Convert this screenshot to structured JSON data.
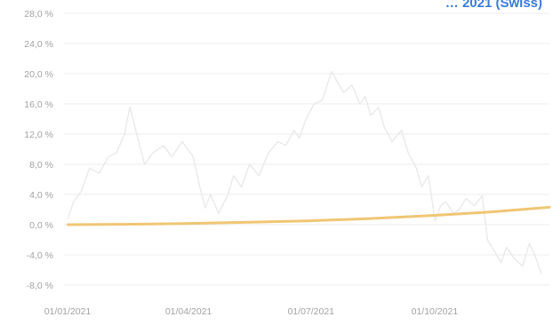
{
  "chart_data": {
    "type": "line",
    "title": "… 2021 (Swiss)",
    "xlabel": "",
    "ylabel": "",
    "ylim": [
      -8,
      28
    ],
    "yticks": [
      -8,
      -4,
      0,
      4,
      8,
      12,
      16,
      20,
      24,
      28
    ],
    "ytick_labels": [
      "-8,0 %",
      "-4,0 %",
      "0,0 %",
      "4,0 %",
      "8,0 %",
      "12,0 %",
      "16,0 %",
      "20,0 %",
      "24,0 %",
      "28,0 %"
    ],
    "xlim": [
      "2021-01-01",
      "2021-12-28"
    ],
    "xticks": [
      "2021-01-01",
      "2021-04-01",
      "2021-07-01",
      "2021-10-01"
    ],
    "xtick_labels": [
      "01/01/2021",
      "01/04/2021",
      "01/07/2021",
      "01/10/2021"
    ],
    "grid": true,
    "legend": "none",
    "colors": {
      "series_a": "#e9e9e9",
      "series_b": "#f0c674",
      "grid": "#ececec",
      "tick_text": "#a2a2a2",
      "title": "#3a7bd5"
    },
    "series": [
      {
        "points": [
          [
            "2021-01-04",
            0.8
          ],
          [
            "2021-01-08",
            3.0
          ],
          [
            "2021-01-14",
            4.5
          ],
          [
            "2021-01-20",
            7.5
          ],
          [
            "2021-01-27",
            6.8
          ],
          [
            "2021-02-03",
            9.0
          ],
          [
            "2021-02-09",
            9.5
          ],
          [
            "2021-02-15",
            12.0
          ],
          [
            "2021-02-19",
            15.6
          ],
          [
            "2021-02-24",
            12.0
          ],
          [
            "2021-03-02",
            8.0
          ],
          [
            "2021-03-08",
            9.5
          ],
          [
            "2021-03-16",
            10.5
          ],
          [
            "2021-03-22",
            9.0
          ],
          [
            "2021-03-30",
            11.0
          ],
          [
            "2021-04-07",
            9.0
          ],
          [
            "2021-04-12",
            5.0
          ],
          [
            "2021-04-16",
            2.2
          ],
          [
            "2021-04-20",
            4.0
          ],
          [
            "2021-04-26",
            1.5
          ],
          [
            "2021-05-03",
            4.0
          ],
          [
            "2021-05-07",
            6.5
          ],
          [
            "2021-05-13",
            5.0
          ],
          [
            "2021-05-19",
            8.0
          ],
          [
            "2021-05-26",
            6.5
          ],
          [
            "2021-06-02",
            9.5
          ],
          [
            "2021-06-09",
            11.0
          ],
          [
            "2021-06-15",
            10.5
          ],
          [
            "2021-06-21",
            12.5
          ],
          [
            "2021-06-25",
            11.5
          ],
          [
            "2021-06-30",
            14.0
          ],
          [
            "2021-07-06",
            16.0
          ],
          [
            "2021-07-12",
            16.5
          ],
          [
            "2021-07-19",
            20.3
          ],
          [
            "2021-07-23",
            19.0
          ],
          [
            "2021-07-28",
            17.5
          ],
          [
            "2021-08-03",
            18.5
          ],
          [
            "2021-08-09",
            16.0
          ],
          [
            "2021-08-13",
            17.0
          ],
          [
            "2021-08-17",
            14.5
          ],
          [
            "2021-08-23",
            15.5
          ],
          [
            "2021-08-27",
            13.0
          ],
          [
            "2021-09-02",
            11.0
          ],
          [
            "2021-09-09",
            12.5
          ],
          [
            "2021-09-14",
            9.5
          ],
          [
            "2021-09-20",
            7.5
          ],
          [
            "2021-09-24",
            5.0
          ],
          [
            "2021-09-29",
            6.5
          ],
          [
            "2021-10-04",
            0.5
          ],
          [
            "2021-10-08",
            2.5
          ],
          [
            "2021-10-12",
            3.0
          ],
          [
            "2021-10-18",
            1.5
          ],
          [
            "2021-10-22",
            2.0
          ],
          [
            "2021-10-27",
            3.5
          ],
          [
            "2021-11-02",
            2.5
          ],
          [
            "2021-11-08",
            3.8
          ],
          [
            "2021-11-12",
            -2.0
          ],
          [
            "2021-11-17",
            -3.5
          ],
          [
            "2021-11-22",
            -5.0
          ],
          [
            "2021-11-26",
            -3.0
          ],
          [
            "2021-12-02",
            -4.5
          ],
          [
            "2021-12-08",
            -5.5
          ],
          [
            "2021-12-13",
            -2.5
          ],
          [
            "2021-12-17",
            -4.0
          ],
          [
            "2021-12-22",
            -6.5
          ]
        ]
      },
      {
        "points": [
          [
            "2021-01-04",
            0.0
          ],
          [
            "2021-02-15",
            0.05
          ],
          [
            "2021-04-01",
            0.15
          ],
          [
            "2021-05-15",
            0.3
          ],
          [
            "2021-07-01",
            0.5
          ],
          [
            "2021-08-15",
            0.8
          ],
          [
            "2021-10-01",
            1.2
          ],
          [
            "2021-11-15",
            1.7
          ],
          [
            "2021-12-28",
            2.3
          ]
        ]
      }
    ]
  }
}
